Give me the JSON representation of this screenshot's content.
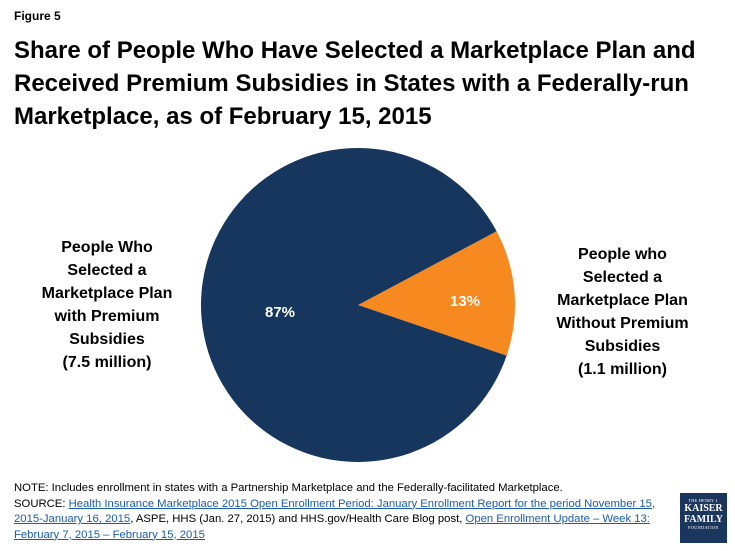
{
  "figure_label": "Figure 5",
  "title_lines": [
    "Share of People Who Have Selected a Marketplace Plan and",
    "Received Premium Subsidies in States with a Federally-run",
    "Marketplace, as of February 15, 2015"
  ],
  "chart_data": {
    "type": "pie",
    "title": "Share of People Who Have Selected a Marketplace Plan and Received Premium Subsidies in States with a Federally-run Marketplace, as of February 15, 2015",
    "slices": [
      {
        "label_lines": [
          "People Who",
          "Selected a",
          "Marketplace Plan",
          "with Premium",
          "Subsidies",
          "(7.5 million)"
        ],
        "value": 87,
        "value_label": "87%",
        "color": "#17365d"
      },
      {
        "label_lines": [
          "People who",
          "Selected a",
          "Marketplace Plan",
          "Without Premium",
          "Subsidies",
          "(1.1 million)"
        ],
        "value": 13,
        "value_label": "13%",
        "color": "#f6891f"
      }
    ]
  },
  "notes": {
    "note": "NOTE: Includes enrollment in states with a Partnership Marketplace and the Federally-facilitated Marketplace.",
    "source_prefix": "SOURCE: ",
    "source_link1_line1": "Health Insurance Marketplace 2015 Open Enrollment Period:  January Enrollment Report for the period November 15,",
    "source_link1_line2": "2015-January 16, 2015",
    "source_mid": ", ASPE, HHS (Jan. 27, 2015) and HHS.gov/Health Care Blog post, ",
    "source_link2_line1": "Open Enrollment Update – Week 13:",
    "source_link2_line2": "February 7, 2015 – February 15, 2015"
  },
  "logo": {
    "line1": "THE HENRY J.",
    "line2": "KAISER",
    "line3": "FAMILY",
    "line4": "FOUNDATION",
    "color": "#1b365d"
  }
}
